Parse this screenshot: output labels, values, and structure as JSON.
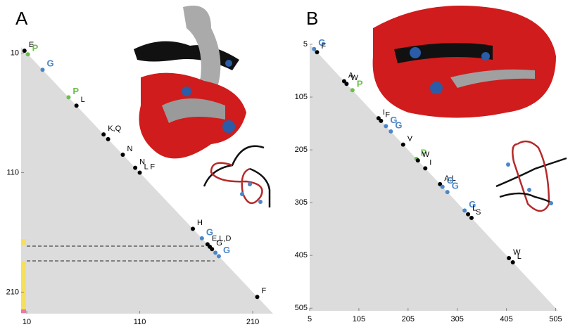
{
  "chart_data": [
    {
      "type": "scatter",
      "title": "A",
      "xlim": [
        5,
        228
      ],
      "ylim": [
        5,
        228
      ],
      "xticks": [
        10,
        110,
        210
      ],
      "yticks": [
        10,
        110,
        210
      ],
      "x": [
        8,
        11,
        24,
        47,
        54,
        78,
        82,
        95,
        106,
        110,
        157,
        165,
        170,
        172,
        174,
        177,
        180,
        214
      ],
      "labels": [
        "E",
        "P",
        "G",
        "P",
        "L",
        "K,Q",
        null,
        "N",
        "N",
        "L  F",
        "H",
        "G",
        "E,L,D",
        null,
        "G",
        null,
        "G",
        "F"
      ],
      "colors": [
        "#000",
        "#6abf4b",
        "#4a86c8",
        "#6abf4b",
        "#000",
        "#000",
        "#000",
        "#000",
        "#000",
        "#000",
        "#000",
        "#4a86c8",
        "#000",
        "#000",
        "#000",
        "#4a86c8",
        "#4a86c8",
        "#000"
      ]
    },
    {
      "type": "scatter",
      "title": "B",
      "xlim": [
        5,
        510
      ],
      "ylim": [
        5,
        510
      ],
      "xticks": [
        5,
        105,
        205,
        305,
        405,
        505
      ],
      "yticks": [
        5,
        105,
        205,
        305,
        405,
        505
      ],
      "x": [
        14,
        20,
        75,
        80,
        92,
        145,
        150,
        160,
        170,
        195,
        222,
        225,
        240,
        270,
        275,
        285,
        320,
        327,
        334,
        410,
        418
      ],
      "labels": [
        "G",
        "F",
        "A",
        "W",
        "P",
        "I",
        "F",
        "G",
        "G",
        "V",
        "P",
        "W",
        "I",
        "A,L",
        "G",
        "G",
        "G",
        "L",
        "S",
        "W",
        "L"
      ],
      "colors": [
        "#4a86c8",
        "#000",
        "#000",
        "#000",
        "#6abf4b",
        "#000",
        "#000",
        "#4a86c8",
        "#4a86c8",
        "#000",
        "#6abf4b",
        "#000",
        "#000",
        "#000",
        "#4a86c8",
        "#4a86c8",
        "#4a86c8",
        "#000",
        "#000",
        "#000",
        "#000"
      ]
    }
  ]
}
